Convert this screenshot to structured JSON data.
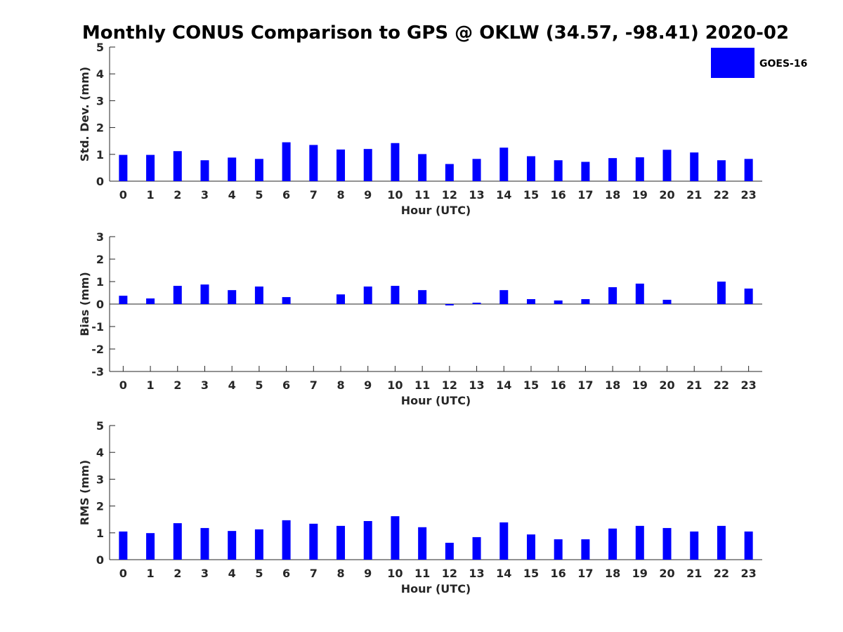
{
  "chart_data": [
    {
      "type": "bar",
      "title": "Monthly CONUS Comparison to GPS @ OKLW (34.57, -98.41) 2020-02",
      "xlabel": "Hour (UTC)",
      "ylabel": "Std. Dev. (mm)",
      "ylim": [
        0,
        5
      ],
      "yticks": [
        "0",
        "1",
        "2",
        "3",
        "4",
        "5"
      ],
      "categories": [
        "0",
        "1",
        "2",
        "3",
        "4",
        "5",
        "6",
        "7",
        "8",
        "9",
        "10",
        "11",
        "12",
        "13",
        "14",
        "15",
        "16",
        "17",
        "18",
        "19",
        "20",
        "21",
        "22",
        "23"
      ],
      "series": [
        {
          "name": "GOES-16",
          "color": "#0000ff",
          "values": [
            0.98,
            0.98,
            1.12,
            0.78,
            0.88,
            0.83,
            1.45,
            1.35,
            1.18,
            1.2,
            1.42,
            1.01,
            0.64,
            0.83,
            1.25,
            0.93,
            0.78,
            0.72,
            0.86,
            0.89,
            1.17,
            1.07,
            0.78,
            0.83
          ]
        }
      ],
      "legend": {
        "position": "top-right",
        "entries": [
          "GOES-16"
        ]
      }
    },
    {
      "type": "bar",
      "xlabel": "Hour (UTC)",
      "ylabel": "Bias (mm)",
      "ylim": [
        -3,
        3
      ],
      "yticks": [
        "-3",
        "-2",
        "-1",
        "0",
        "1",
        "2",
        "3"
      ],
      "categories": [
        "0",
        "1",
        "2",
        "3",
        "4",
        "5",
        "6",
        "7",
        "8",
        "9",
        "10",
        "11",
        "12",
        "13",
        "14",
        "15",
        "16",
        "17",
        "18",
        "19",
        "20",
        "21",
        "22",
        "23"
      ],
      "series": [
        {
          "name": "GOES-16",
          "color": "#0000ff",
          "values": [
            0.37,
            0.25,
            0.81,
            0.87,
            0.62,
            0.78,
            0.31,
            0.0,
            0.43,
            0.78,
            0.81,
            0.62,
            -0.06,
            0.06,
            0.62,
            0.22,
            0.16,
            0.22,
            0.75,
            0.91,
            0.19,
            0.0,
            1.0,
            0.69
          ]
        }
      ]
    },
    {
      "type": "bar",
      "xlabel": "Hour (UTC)",
      "ylabel": "RMS (mm)",
      "ylim": [
        0,
        5
      ],
      "yticks": [
        "0",
        "1",
        "2",
        "3",
        "4",
        "5"
      ],
      "categories": [
        "0",
        "1",
        "2",
        "3",
        "4",
        "5",
        "6",
        "7",
        "8",
        "9",
        "10",
        "11",
        "12",
        "13",
        "14",
        "15",
        "16",
        "17",
        "18",
        "19",
        "20",
        "21",
        "22",
        "23"
      ],
      "series": [
        {
          "name": "GOES-16",
          "color": "#0000ff",
          "values": [
            1.05,
            0.99,
            1.36,
            1.18,
            1.07,
            1.13,
            1.47,
            1.34,
            1.26,
            1.44,
            1.62,
            1.21,
            0.63,
            0.84,
            1.39,
            0.94,
            0.76,
            0.76,
            1.16,
            1.26,
            1.18,
            1.05,
            1.26,
            1.05
          ]
        }
      ]
    }
  ]
}
